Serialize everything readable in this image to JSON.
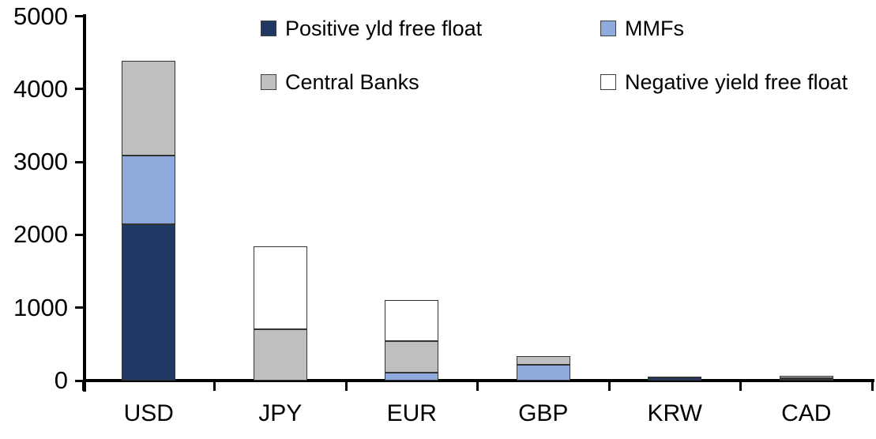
{
  "chart_data": {
    "type": "bar",
    "stacked": true,
    "title": "",
    "xlabel": "",
    "ylabel": "",
    "categories": [
      "USD",
      "JPY",
      "EUR",
      "GBP",
      "KRW",
      "CAD"
    ],
    "series": [
      {
        "name": "Positive yld free float",
        "color": "#1F3864",
        "values": [
          2150,
          0,
          0,
          0,
          45,
          20
        ]
      },
      {
        "name": "MMFs",
        "color": "#8FAADC",
        "values": [
          940,
          0,
          105,
          215,
          10,
          10
        ]
      },
      {
        "name": "Central Banks",
        "color": "#BFBFBF",
        "values": [
          1295,
          700,
          435,
          120,
          0,
          35
        ]
      },
      {
        "name": "Negative yield free float",
        "color": "#FFFFFF",
        "values": [
          0,
          1145,
          570,
          0,
          0,
          0
        ]
      }
    ],
    "totals": [
      4385,
      1845,
      1110,
      335,
      55,
      65
    ],
    "ylim": [
      0,
      5000
    ],
    "yticks": [
      0,
      1000,
      2000,
      3000,
      4000,
      5000
    ],
    "grid": false,
    "legend_position": "top"
  }
}
